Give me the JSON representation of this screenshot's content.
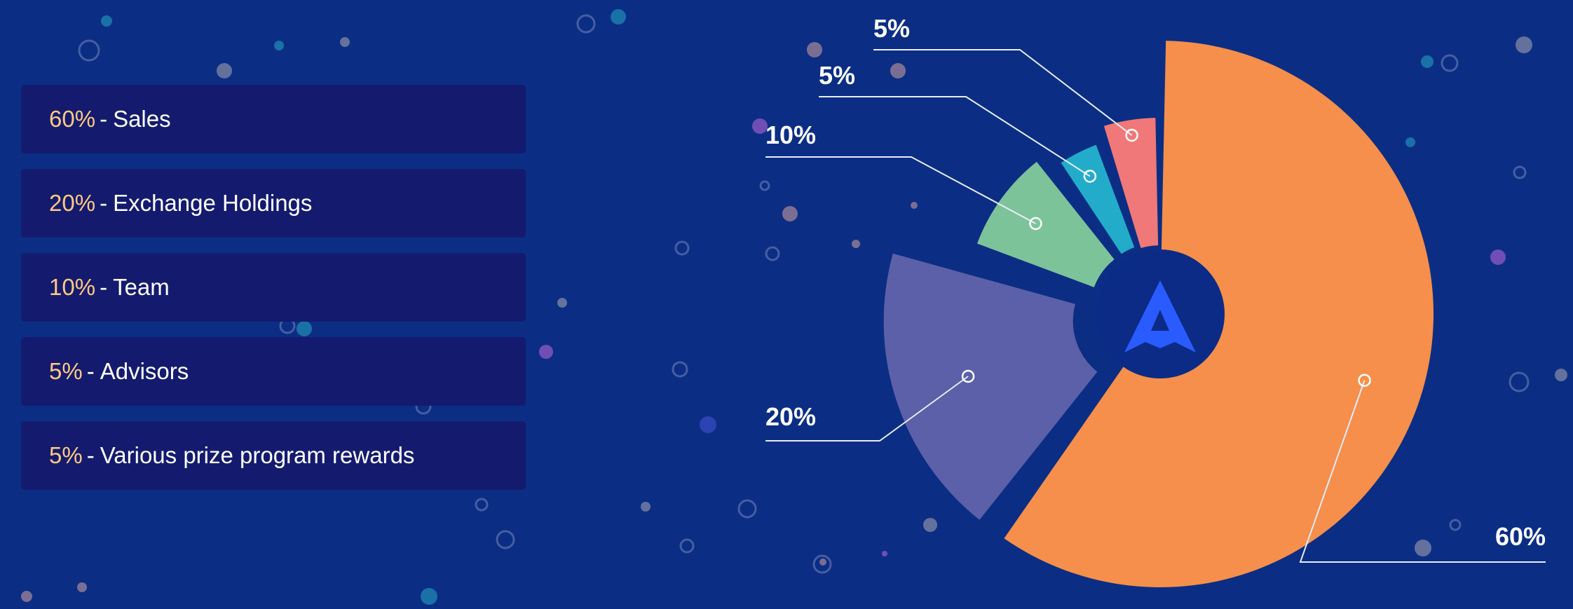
{
  "colors": {
    "background": "#0b2e84",
    "legend_box": "#141b6e",
    "legend_percent": "#ffc982",
    "center_circle": "#0c2b86",
    "logo": "#2a5bff"
  },
  "legend": {
    "separator": "-",
    "items": [
      {
        "percent": "60%",
        "label": "Sales"
      },
      {
        "percent": "20%",
        "label": "Exchange Holdings"
      },
      {
        "percent": "10%",
        "label": "Team"
      },
      {
        "percent": "5%",
        "label": "Advisors"
      },
      {
        "percent": "5%",
        "label": "Various prize program rewards"
      }
    ]
  },
  "logo_icon": "arrow-a-logo-icon",
  "chart_data": {
    "type": "pie",
    "donut": true,
    "exploded": true,
    "title": "",
    "slices": [
      {
        "name": "Sales",
        "value": 60,
        "label": "60%",
        "color": "#f58f4b"
      },
      {
        "name": "Exchange Holdings",
        "value": 20,
        "label": "20%",
        "color": "#5c60a8"
      },
      {
        "name": "Team",
        "value": 10,
        "label": "10%",
        "color": "#7cc39a"
      },
      {
        "name": "Advisors",
        "value": 5,
        "label": "5%",
        "color": "#22acca"
      },
      {
        "name": "Various prize program rewards",
        "value": 5,
        "label": "5%",
        "color": "#f07878"
      }
    ],
    "legend_position": "left"
  }
}
